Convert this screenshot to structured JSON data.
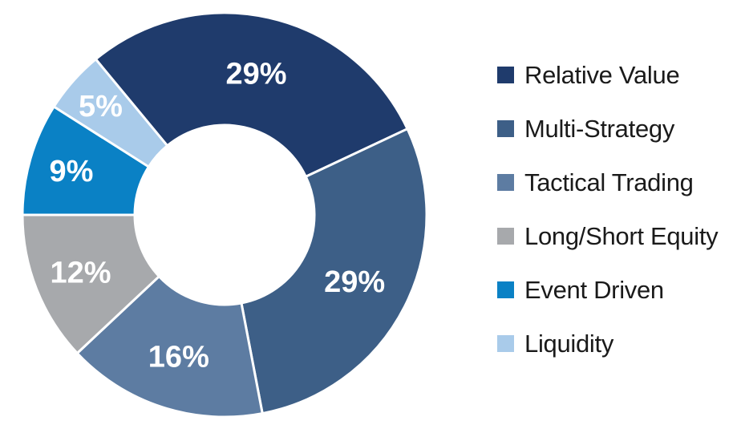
{
  "chart_data": {
    "type": "pie",
    "subtype": "donut",
    "title": "",
    "categories": [
      "Relative Value",
      "Multi-Strategy",
      "Tactical Trading",
      "Long/Short Equity",
      "Event Driven",
      "Liquidity"
    ],
    "values": [
      29,
      29,
      16,
      12,
      9,
      5
    ],
    "segments": [
      {
        "label": "Relative Value",
        "value": 29,
        "display": "29%",
        "color": "#1F3B6C",
        "label_r": 181
      },
      {
        "label": "Multi-Strategy",
        "value": 29,
        "display": "29%",
        "color": "#3D5F87",
        "label_r": 182
      },
      {
        "label": "Tactical Trading",
        "value": 16,
        "display": "16%",
        "color": "#5D7CA2",
        "label_r": 185
      },
      {
        "label": "Long/Short Equity",
        "value": 12,
        "display": "12%",
        "color": "#A7A9AC",
        "label_r": 193
      },
      {
        "label": "Event Driven",
        "value": 9,
        "display": "9%",
        "color": "#0A81C5",
        "label_r": 199
      },
      {
        "label": "Liquidity",
        "value": 5,
        "display": "5%",
        "color": "#A9CBEA",
        "label_r": 206
      }
    ],
    "start_angle_deg": 320.4,
    "direction": "clockwise",
    "inner_radius_ratio": 0.444,
    "legend_position": "right",
    "grid": false,
    "slice_label_color": "#FFFFFF",
    "separator_color": "#FFFFFF",
    "legend_text_color": "#1A1A1A",
    "background_color": "#FFFFFF"
  }
}
